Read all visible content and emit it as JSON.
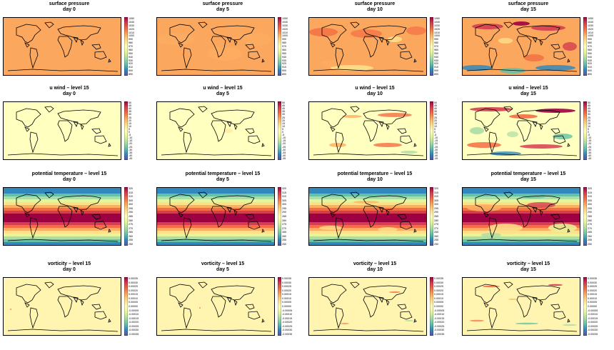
{
  "chart_data": {
    "type": "heatmap",
    "layout": "4 rows x 4 columns of global map panels with colorbars",
    "columns": [
      "day 0",
      "day 5",
      "day 10",
      "day 15"
    ],
    "rows": [
      {
        "id": "sp",
        "variable": "surface pressure",
        "colorbar_ticks": [
          "1050",
          "1040",
          "1030",
          "1020",
          "1010",
          "1000",
          "990",
          "980",
          "970",
          "960",
          "950",
          "940",
          "930",
          "920",
          "910",
          "900",
          "890"
        ],
        "days": [
          {
            "title": [
              "surface pressure",
              "day 0"
            ]
          },
          {
            "title": [
              "surface pressure",
              "day 5"
            ]
          },
          {
            "title": [
              "surface pressure",
              "day 10"
            ]
          },
          {
            "title": [
              "surface pressure",
              "day 15"
            ]
          }
        ]
      },
      {
        "id": "u",
        "variable": "u wind - level 15",
        "colorbar_ticks": [
          "50",
          "45",
          "40",
          "35",
          "30",
          "25",
          "20",
          "15",
          "10",
          "5",
          "0",
          "-5",
          "-10",
          "-15",
          "-20",
          "-25",
          "-30",
          "-35",
          "-40",
          "-45"
        ],
        "days": [
          {
            "title": [
              "u wind – level 15",
              "day 0"
            ]
          },
          {
            "title": [
              "u wind – level 15",
              "day 5"
            ]
          },
          {
            "title": [
              "u wind – level 15",
              "day 10"
            ]
          },
          {
            "title": [
              "u wind – level 15",
              "day 15"
            ]
          }
        ]
      },
      {
        "id": "th",
        "variable": "potential temperature - level 15",
        "colorbar_ticks": [
          "320",
          "315",
          "310",
          "305",
          "300",
          "295",
          "290",
          "285",
          "280",
          "275",
          "270",
          "265",
          "260",
          "255",
          "250"
        ],
        "days": [
          {
            "title": [
              "potential temperature – level 15",
              "day 0"
            ]
          },
          {
            "title": [
              "potential temperature – level 15",
              "day 5"
            ]
          },
          {
            "title": [
              "potential temperature – level 15",
              "day 10"
            ]
          },
          {
            "title": [
              "potential temperature – level 15",
              "day 15"
            ]
          }
        ]
      },
      {
        "id": "vo",
        "variable": "vorticity - level 15",
        "colorbar_ticks": [
          "0.00035",
          "0.00030",
          "0.00025",
          "0.00020",
          "0.00015",
          "0.00010",
          "0.00005",
          "0.00000",
          "-0.00005",
          "-0.00010",
          "-0.00015",
          "-0.00020",
          "-0.00025",
          "-0.00030",
          "-0.00035"
        ],
        "days": [
          {
            "title": [
              "vorticity – level 15",
              "day 0"
            ]
          },
          {
            "title": [
              "vorticity – level 15",
              "day 5"
            ]
          },
          {
            "title": [
              "vorticity – level 15",
              "day 10"
            ]
          },
          {
            "title": [
              "vorticity – level 15",
              "day 15"
            ]
          }
        ]
      }
    ],
    "colormap": [
      "#5e4fa2",
      "#3288bd",
      "#66c2a5",
      "#abdda4",
      "#e6f598",
      "#ffffbf",
      "#fee08b",
      "#fdae61",
      "#f46d43",
      "#d53e4f",
      "#9e0142"
    ],
    "fill_levels_description": {
      "sp": "uniform orange at day 0 (~1000); increasing red/blue patches by day 15",
      "u": "uniform pale yellow near 0 at day 0; banded jets develop by day 15",
      "th": "zonal bands: cool purple at poles, dark red in tropics",
      "vo": "uniform pale yellow near 0 with faint small-scale noise growing"
    }
  }
}
